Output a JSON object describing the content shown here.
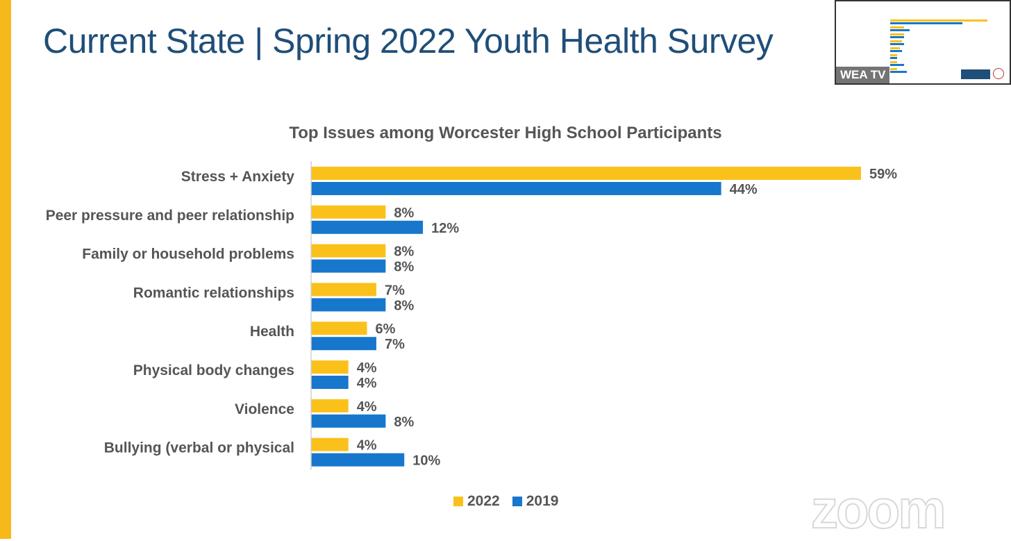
{
  "slide": {
    "title": "Current State | Spring 2022 Youth Health Survey",
    "accent_color": "#f6b81a"
  },
  "overlay": {
    "channel_label": "WEA TV",
    "watermark": "zoom"
  },
  "chart_data": {
    "type": "bar",
    "orientation": "horizontal",
    "title": "Top Issues among Worcester High School Participants",
    "categories": [
      "Stress + Anxiety",
      "Peer pressure and peer relationship",
      "Family or household problems",
      "Romantic relationships",
      "Health",
      "Physical body changes",
      "Violence",
      "Bullying (verbal or physical"
    ],
    "series": [
      {
        "name": "2022",
        "color": "#fbc11b",
        "values": [
          59,
          8,
          8,
          7,
          6,
          4,
          4,
          4
        ],
        "labels": [
          "59%",
          "8%",
          "8%",
          "7%",
          "6%",
          "4%",
          "4%",
          "4%"
        ]
      },
      {
        "name": "2019",
        "color": "#1777cc",
        "values": [
          44,
          12,
          8,
          8,
          7,
          4,
          8,
          10
        ],
        "labels": [
          "44%",
          "12%",
          "8%",
          "8%",
          "7%",
          "4%",
          "8%",
          "10%"
        ]
      }
    ],
    "xlabel": "",
    "ylabel": "",
    "xlim": [
      0,
      59
    ],
    "grid": false,
    "legend": "bottom"
  }
}
